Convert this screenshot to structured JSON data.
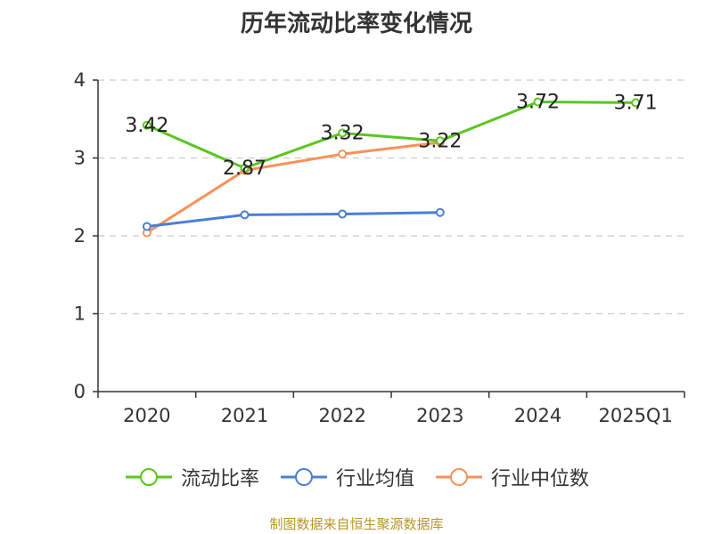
{
  "title": "历年流动比率变化情况",
  "source_note": "制图数据来自恒生聚源数据库",
  "colors": {
    "current_ratio": "#5bc522",
    "industry_mean": "#4a7fd6",
    "industry_median": "#f5925a",
    "grid": "#cccccc",
    "axis": "#333333",
    "source": "#b8952a"
  },
  "legend": [
    {
      "label": "流动比率",
      "color": "#5bc522"
    },
    {
      "label": "行业均值",
      "color": "#4a7fd6"
    },
    {
      "label": "行业中位数",
      "color": "#f5925a"
    }
  ],
  "chart_data": {
    "type": "line",
    "categories": [
      "2020",
      "2021",
      "2022",
      "2023",
      "2024",
      "2025Q1"
    ],
    "ylim": [
      0,
      4
    ],
    "yticks": [
      0,
      1,
      2,
      3,
      4
    ],
    "grid": "horizontal dashed",
    "legend_position": "bottom",
    "series": [
      {
        "name": "流动比率",
        "color": "#5bc522",
        "values": [
          3.42,
          2.87,
          3.32,
          3.22,
          3.72,
          3.71
        ],
        "labels": [
          "3.42",
          "2.87",
          "3.32",
          "3.22",
          "3.72",
          "3.71"
        ]
      },
      {
        "name": "行业均值",
        "color": "#4a7fd6",
        "values": [
          2.12,
          2.27,
          2.28,
          2.3,
          null,
          null
        ]
      },
      {
        "name": "行业中位数",
        "color": "#f5925a",
        "values": [
          2.04,
          2.84,
          3.05,
          3.2,
          null,
          null
        ]
      }
    ]
  }
}
